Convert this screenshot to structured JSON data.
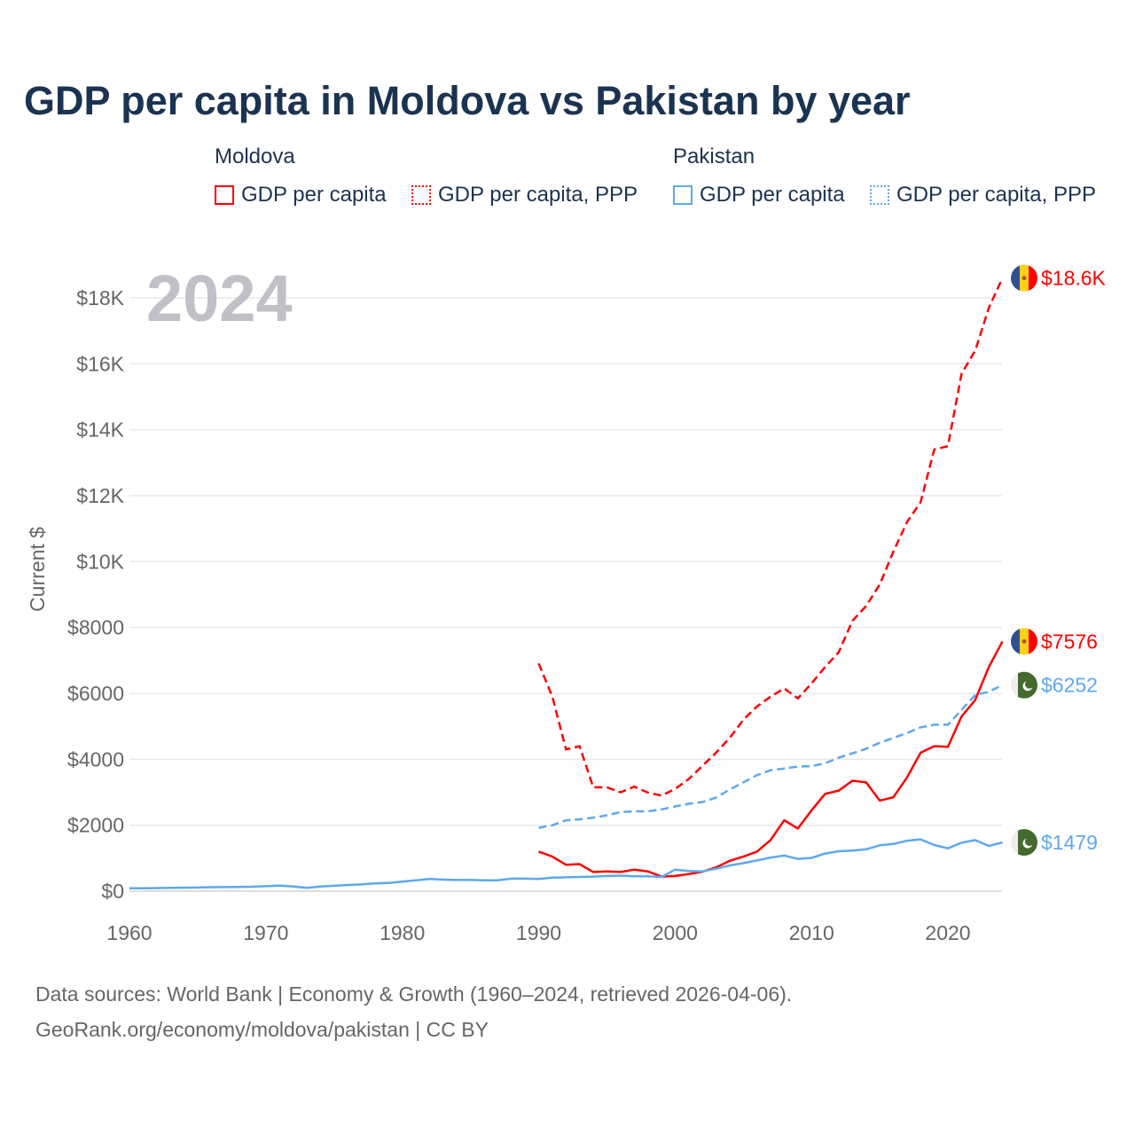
{
  "chart_data": {
    "type": "line",
    "title": "GDP per capita in Moldova vs Pakistan by year",
    "ylabel": "Current $",
    "xlabel": "",
    "year_watermark": "2024",
    "xlim": [
      1960,
      2024
    ],
    "ylim": [
      0,
      18600
    ],
    "x_ticks": [
      "1960",
      "1970",
      "1980",
      "1990",
      "2000",
      "2010",
      "2020"
    ],
    "y_ticks": [
      "$0",
      "$2000",
      "$4000",
      "$6000",
      "$8000",
      "$10K",
      "$12K",
      "$14K",
      "$16K",
      "$18K"
    ],
    "y_tick_values": [
      0,
      2000,
      4000,
      6000,
      8000,
      10000,
      12000,
      14000,
      16000,
      18000
    ],
    "legend": {
      "groups": [
        "Moldova",
        "Pakistan"
      ],
      "items": [
        "GDP per capita",
        "GDP per capita, PPP",
        "GDP per capita",
        "GDP per capita, PPP"
      ]
    },
    "series": [
      {
        "name": "Moldova GDP per capita, PPP",
        "country": "Moldova",
        "color": "#ff0000",
        "dashed": true,
        "start": 1990,
        "end_label": "$18.6K",
        "values": [
          6910,
          5900,
          4300,
          4400,
          3150,
          3150,
          3000,
          3170,
          2990,
          2900,
          3100,
          3400,
          3800,
          4200,
          4650,
          5200,
          5600,
          5900,
          6150,
          5850,
          6300,
          6800,
          7250,
          8200,
          8650,
          9300,
          10300,
          11200,
          11800,
          13400,
          13500,
          15700,
          16400,
          17700,
          18600
        ]
      },
      {
        "name": "Moldova GDP per capita",
        "country": "Moldova",
        "color": "#ff0000",
        "dashed": false,
        "start": 1990,
        "end_label": "$7576",
        "values": [
          1200,
          1050,
          800,
          820,
          580,
          600,
          580,
          650,
          600,
          440,
          460,
          520,
          590,
          720,
          920,
          1050,
          1200,
          1550,
          2150,
          1900,
          2450,
          2950,
          3050,
          3350,
          3300,
          2750,
          2850,
          3450,
          4200,
          4400,
          4380,
          5300,
          5800,
          6800,
          7576
        ]
      },
      {
        "name": "Pakistan GDP per capita, PPP",
        "country": "Pakistan",
        "color": "#5ea8ee",
        "dashed": true,
        "start": 1990,
        "end_label": "$6252",
        "values": [
          1920,
          2000,
          2150,
          2180,
          2230,
          2300,
          2400,
          2420,
          2420,
          2480,
          2570,
          2650,
          2700,
          2840,
          3080,
          3300,
          3520,
          3670,
          3720,
          3780,
          3790,
          3880,
          4050,
          4180,
          4320,
          4500,
          4650,
          4800,
          4970,
          5050,
          5050,
          5500,
          5950,
          6050,
          6252
        ]
      },
      {
        "name": "Pakistan GDP per capita",
        "country": "Pakistan",
        "color": "#5ea8ee",
        "dashed": false,
        "start": 1960,
        "end_label": "$1479",
        "values": [
          85,
          90,
          95,
          100,
          105,
          110,
          120,
          125,
          130,
          135,
          150,
          170,
          140,
          100,
          140,
          165,
          185,
          205,
          235,
          250,
          290,
          330,
          370,
          350,
          340,
          340,
          330,
          330,
          380,
          380,
          370,
          410,
          420,
          430,
          440,
          460,
          470,
          450,
          450,
          430,
          650,
          610,
          600,
          680,
          780,
          850,
          930,
          1020,
          1080,
          980,
          1010,
          1140,
          1210,
          1230,
          1270,
          1390,
          1430,
          1530,
          1570,
          1400,
          1300,
          1470,
          1550,
          1370,
          1479
        ]
      }
    ]
  },
  "footer": {
    "line1": "Data sources: World Bank | Economy & Growth (1960–2024, retrieved 2026-04-06).",
    "line2": "GeoRank.org/economy/moldova/pakistan | CC BY"
  }
}
